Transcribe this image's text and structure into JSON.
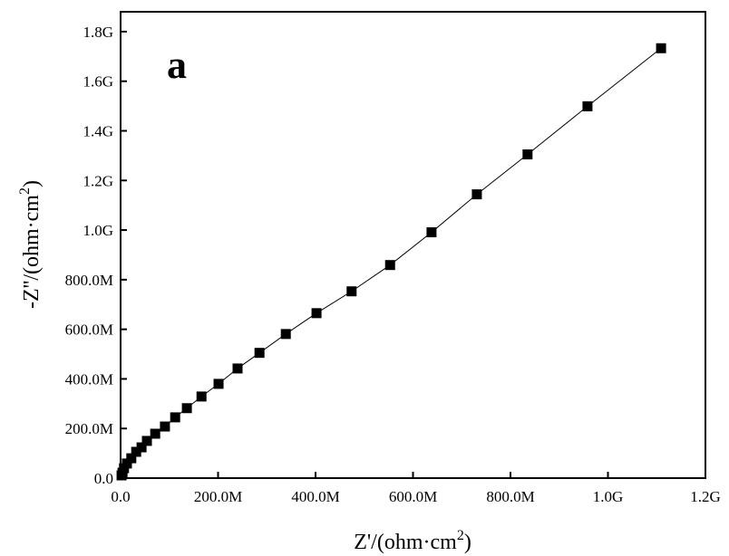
{
  "chart_data": {
    "type": "line",
    "panel_label": "a",
    "xlabel": "Z'/(ohm·cm",
    "xlabel_sup": "2",
    "xlabel_end": ")",
    "ylabel": "-Z''/(ohm·cm",
    "ylabel_sup": "2",
    "ylabel_end": ")",
    "xlim": [
      0,
      1200000000
    ],
    "ylim": [
      0,
      1880000000
    ],
    "grid": false,
    "x_ticks": [
      0,
      200000000,
      400000000,
      600000000,
      800000000,
      1000000000,
      1200000000
    ],
    "x_tick_labels": [
      "0.0",
      "200.0M",
      "400.0M",
      "600.0M",
      "800.0M",
      "1.0G",
      "1.2G"
    ],
    "y_ticks": [
      0,
      200000000,
      400000000,
      600000000,
      800000000,
      1000000000,
      1200000000,
      1400000000,
      1600000000,
      1800000000
    ],
    "y_tick_labels": [
      "0.0",
      "200.0M",
      "400.0M",
      "600.0M",
      "800.0M",
      "1.0G",
      "1.2G",
      "1.4G",
      "1.6G",
      "1.8G"
    ],
    "series": [
      {
        "name": "a",
        "marker": "square",
        "color": "#000000",
        "x": [
          2000000.0,
          4000000.0,
          7000000.0,
          13000000.0,
          22000000.0,
          32000000.0,
          43000000.0,
          54000000.0,
          71000000.0,
          91000000.0,
          112000000.0,
          136000000.0,
          166000000.0,
          201000000.0,
          240000000.0,
          285000000.0,
          339000000.0,
          402000000.0,
          474000000.0,
          553000000.0,
          638000000.0,
          731000000.0,
          835000000.0,
          958000000.0,
          1109000000.0
        ],
        "y": [
          11000000.0,
          22000000.0,
          40000000.0,
          59000000.0,
          80000000.0,
          106000000.0,
          124000000.0,
          150000000.0,
          179000000.0,
          208000000.0,
          245000000.0,
          282000000.0,
          329000000.0,
          380000000.0,
          442000000.0,
          505000000.0,
          581000000.0,
          665000000.0,
          753000000.0,
          859000000.0,
          991000000.0,
          1144000000.0,
          1305000000.0,
          1499000000.0,
          1733000000.0
        ]
      }
    ]
  }
}
